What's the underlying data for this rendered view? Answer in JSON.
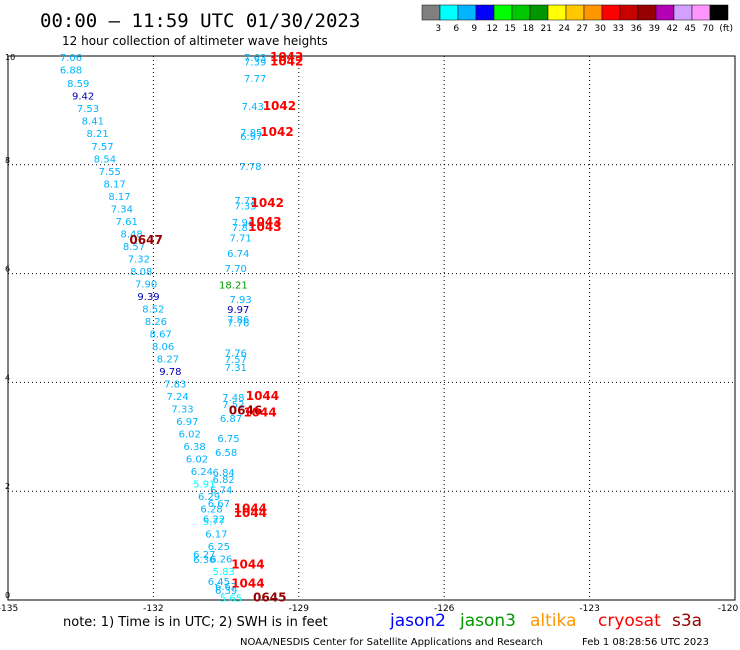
{
  "header": {
    "title": "00:00 — 11:59 UTC 01/30/2023",
    "subtitle": "12 hour collection of altimeter wave heights"
  },
  "colorbar": {
    "colors": [
      "#808080",
      "#00ffff",
      "#00b4ff",
      "#0000ff",
      "#00ff00",
      "#00c800",
      "#009600",
      "#ffff00",
      "#ffc800",
      "#ff9600",
      "#ff0000",
      "#c80000",
      "#960000",
      "#b400b4",
      "#d2a0ff",
      "#ff96ff",
      "#000000"
    ],
    "labels": [
      "3",
      "6",
      "9",
      "12",
      "15",
      "18",
      "21",
      "24",
      "27",
      "30",
      "33",
      "36",
      "39",
      "42",
      "45",
      "70",
      "(ft)"
    ]
  },
  "footer": {
    "note": "note: 1) Time is in UTC; 2) SWH is in feet",
    "credit": "NOAA/NESDIS Center for Satellite Applications and Research",
    "timestamp": "Feb  1 08:28:56 UTC 2023"
  },
  "legend": [
    {
      "name": "jason2",
      "color": "#0000ff"
    },
    {
      "name": "jason3",
      "color": "#009600"
    },
    {
      "name": "altika",
      "color": "#ff9600"
    },
    {
      "name": "cryosat",
      "color": "#ff0000"
    },
    {
      "name": "s3a",
      "color": "#960000"
    }
  ],
  "chart_data": {
    "type": "scatter",
    "xlim": [
      -135,
      -120
    ],
    "ylim": [
      0,
      10
    ],
    "x_ticks": [
      "-135",
      "-132",
      "-129",
      "-126",
      "-123",
      "-120"
    ],
    "y_ticks": [
      "0",
      "2",
      "4",
      "6",
      "8",
      "10"
    ],
    "grid": true,
    "points": [
      {
        "x": -133.7,
        "y": 9.98,
        "label": "7.06",
        "color": "#00b4ff"
      },
      {
        "x": -133.7,
        "y": 9.75,
        "label": "6.88",
        "color": "#00b4ff"
      },
      {
        "x": -133.55,
        "y": 9.5,
        "label": "8.59",
        "color": "#00b4ff"
      },
      {
        "x": -133.45,
        "y": 9.27,
        "label": "9.42",
        "color": "#0000b4"
      },
      {
        "x": -133.35,
        "y": 9.04,
        "label": "7.53",
        "color": "#00b4ff"
      },
      {
        "x": -133.25,
        "y": 8.81,
        "label": "8.41",
        "color": "#00b4ff"
      },
      {
        "x": -133.15,
        "y": 8.58,
        "label": "8.21",
        "color": "#00b4ff"
      },
      {
        "x": -133.05,
        "y": 8.35,
        "label": "7.57",
        "color": "#00b4ff"
      },
      {
        "x": -133.0,
        "y": 8.12,
        "label": "8.54",
        "color": "#00b4ff"
      },
      {
        "x": -132.9,
        "y": 7.89,
        "label": "7.55",
        "color": "#00b4ff"
      },
      {
        "x": -132.8,
        "y": 7.66,
        "label": "8.17",
        "color": "#00b4ff"
      },
      {
        "x": -132.7,
        "y": 7.43,
        "label": "8.17",
        "color": "#00b4ff"
      },
      {
        "x": -132.65,
        "y": 7.2,
        "label": "7.34",
        "color": "#00b4ff"
      },
      {
        "x": -132.55,
        "y": 6.97,
        "label": "7.61",
        "color": "#00b4ff"
      },
      {
        "x": -132.45,
        "y": 6.74,
        "label": "8.48",
        "color": "#00b4ff"
      },
      {
        "x": -132.4,
        "y": 6.51,
        "label": "8.57",
        "color": "#00b4ff"
      },
      {
        "x": -132.3,
        "y": 6.28,
        "label": "7.32",
        "color": "#00b4ff"
      },
      {
        "x": -132.25,
        "y": 6.05,
        "label": "8.08",
        "color": "#00b4ff"
      },
      {
        "x": -132.15,
        "y": 5.82,
        "label": "7.90",
        "color": "#00b4ff"
      },
      {
        "x": -132.1,
        "y": 5.59,
        "label": "9.39",
        "color": "#0000b4"
      },
      {
        "x": -132.0,
        "y": 5.36,
        "label": "8.52",
        "color": "#00b4ff"
      },
      {
        "x": -131.95,
        "y": 5.13,
        "label": "8.26",
        "color": "#00b4ff"
      },
      {
        "x": -131.85,
        "y": 4.9,
        "label": "8.67",
        "color": "#00b4ff"
      },
      {
        "x": -131.8,
        "y": 4.67,
        "label": "8.06",
        "color": "#00b4ff"
      },
      {
        "x": -131.7,
        "y": 4.44,
        "label": "8.27",
        "color": "#00b4ff"
      },
      {
        "x": -131.65,
        "y": 4.21,
        "label": "9.78",
        "color": "#0000b4"
      },
      {
        "x": -131.55,
        "y": 3.98,
        "label": "7.83",
        "color": "#00b4ff"
      },
      {
        "x": -131.5,
        "y": 3.75,
        "label": "7.24",
        "color": "#00b4ff"
      },
      {
        "x": -131.4,
        "y": 3.52,
        "label": "7.33",
        "color": "#00b4ff"
      },
      {
        "x": -131.3,
        "y": 3.29,
        "label": "6.97",
        "color": "#00b4ff"
      },
      {
        "x": -131.25,
        "y": 3.06,
        "label": "6.02",
        "color": "#00b4ff"
      },
      {
        "x": -131.15,
        "y": 2.83,
        "label": "6.38",
        "color": "#00b4ff"
      },
      {
        "x": -131.1,
        "y": 2.6,
        "label": "6.02",
        "color": "#00b4ff"
      },
      {
        "x": -131.0,
        "y": 2.37,
        "label": "6.24",
        "color": "#00b4ff"
      },
      {
        "x": -130.95,
        "y": 2.14,
        "label": "5.91",
        "color": "#00ffff"
      },
      {
        "x": -130.85,
        "y": 1.91,
        "label": "6.29",
        "color": "#00b4ff"
      },
      {
        "x": -130.8,
        "y": 1.68,
        "label": "6.28",
        "color": "#00b4ff"
      },
      {
        "x": -130.75,
        "y": 1.45,
        "label": "5.77",
        "color": "#00ffff"
      },
      {
        "x": -130.7,
        "y": 1.22,
        "label": "6.17",
        "color": "#00b4ff"
      },
      {
        "x": -130.65,
        "y": 0.99,
        "label": "6.25",
        "color": "#00b4ff"
      },
      {
        "x": -130.6,
        "y": 0.76,
        "label": "6.26",
        "color": "#00b4ff"
      },
      {
        "x": -130.55,
        "y": 0.53,
        "label": "5.83",
        "color": "#00ffff"
      },
      {
        "x": -130.4,
        "y": 0.05,
        "label": "5.65",
        "color": "#00ffff"
      },
      {
        "x": -129.9,
        "y": 9.98,
        "label": "7.63",
        "color": "#00b4ff"
      },
      {
        "x": -129.9,
        "y": 9.9,
        "label": "7.39",
        "color": "#00b4ff"
      },
      {
        "x": -129.9,
        "y": 9.6,
        "label": "7.77",
        "color": "#00b4ff"
      },
      {
        "x": -129.95,
        "y": 9.08,
        "label": "7.43",
        "color": "#00b4ff"
      },
      {
        "x": -129.98,
        "y": 8.6,
        "label": "7.85",
        "color": "#00b4ff"
      },
      {
        "x": -129.98,
        "y": 8.53,
        "label": "6.97",
        "color": "#00b4ff"
      },
      {
        "x": -130.0,
        "y": 7.98,
        "label": "7.78",
        "color": "#00b4ff"
      },
      {
        "x": -130.1,
        "y": 7.35,
        "label": "7.72",
        "color": "#00b4ff"
      },
      {
        "x": -130.1,
        "y": 7.25,
        "label": "7.35",
        "color": "#00b4ff"
      },
      {
        "x": -130.15,
        "y": 6.95,
        "label": "7.94",
        "color": "#00b4ff"
      },
      {
        "x": -130.15,
        "y": 6.86,
        "label": "7.83",
        "color": "#00b4ff"
      },
      {
        "x": -130.2,
        "y": 6.66,
        "label": "7.71",
        "color": "#00b4ff"
      },
      {
        "x": -130.25,
        "y": 6.38,
        "label": "6.74",
        "color": "#00b4ff"
      },
      {
        "x": -130.3,
        "y": 6.1,
        "label": "7.70",
        "color": "#00b4ff"
      },
      {
        "x": -130.35,
        "y": 5.8,
        "label": "18.21",
        "color": "#009600"
      },
      {
        "x": -130.2,
        "y": 5.53,
        "label": "7.93",
        "color": "#00b4ff"
      },
      {
        "x": -130.25,
        "y": 5.35,
        "label": "9.97",
        "color": "#0000b4"
      },
      {
        "x": -130.25,
        "y": 5.17,
        "label": "7.86",
        "color": "#00b4ff"
      },
      {
        "x": -130.25,
        "y": 5.1,
        "label": "7.76",
        "color": "#00b4ff"
      },
      {
        "x": -130.3,
        "y": 4.55,
        "label": "7.76",
        "color": "#00b4ff"
      },
      {
        "x": -130.3,
        "y": 4.43,
        "label": "7.57",
        "color": "#00b4ff"
      },
      {
        "x": -130.3,
        "y": 4.28,
        "label": "7.31",
        "color": "#00b4ff"
      },
      {
        "x": -130.35,
        "y": 3.73,
        "label": "7.48",
        "color": "#00b4ff"
      },
      {
        "x": -130.35,
        "y": 3.6,
        "label": "7.52",
        "color": "#00b4ff"
      },
      {
        "x": -130.4,
        "y": 3.35,
        "label": "6.87",
        "color": "#00b4ff"
      },
      {
        "x": -130.45,
        "y": 2.98,
        "label": "6.75",
        "color": "#00b4ff"
      },
      {
        "x": -130.5,
        "y": 2.72,
        "label": "6.58",
        "color": "#00b4ff"
      },
      {
        "x": -130.55,
        "y": 2.35,
        "label": "6.84",
        "color": "#00b4ff"
      },
      {
        "x": -130.55,
        "y": 2.22,
        "label": "6.82",
        "color": "#00b4ff"
      },
      {
        "x": -130.6,
        "y": 2.03,
        "label": "6.74",
        "color": "#00b4ff"
      },
      {
        "x": -130.65,
        "y": 1.78,
        "label": "6.67",
        "color": "#00b4ff"
      },
      {
        "x": -130.75,
        "y": 1.5,
        "label": "6.22",
        "color": "#00b4ff"
      },
      {
        "x": -130.95,
        "y": 0.85,
        "label": "6.27",
        "color": "#00b4ff"
      },
      {
        "x": -130.95,
        "y": 0.75,
        "label": "6.36",
        "color": "#00b4ff"
      },
      {
        "x": -130.65,
        "y": 0.35,
        "label": "6.45",
        "color": "#00b4ff"
      },
      {
        "x": -130.5,
        "y": 0.26,
        "label": "6.67",
        "color": "#00b4ff"
      },
      {
        "x": -130.5,
        "y": 0.18,
        "label": "6.39",
        "color": "#00b4ff"
      },
      {
        "x": -130.1,
        "y": 3.48,
        "label": "0646",
        "color": "#960000"
      },
      {
        "x": -132.15,
        "y": 6.62,
        "label": "0647",
        "color": "#960000"
      },
      {
        "x": -129.6,
        "y": 0.05,
        "label": "0645",
        "color": "#960000"
      },
      {
        "x": -129.25,
        "y": 9.98,
        "label": "1043",
        "color": "#ff0000"
      },
      {
        "x": -129.25,
        "y": 9.9,
        "label": "1042",
        "color": "#ff0000"
      },
      {
        "x": -129.4,
        "y": 9.08,
        "label": "1042",
        "color": "#ff0000"
      },
      {
        "x": -129.45,
        "y": 8.6,
        "label": "1042",
        "color": "#ff0000"
      },
      {
        "x": -129.65,
        "y": 7.3,
        "label": "1042",
        "color": "#ff0000"
      },
      {
        "x": -129.7,
        "y": 6.95,
        "label": "1043",
        "color": "#ff0000"
      },
      {
        "x": -129.7,
        "y": 6.86,
        "label": "1043",
        "color": "#ff0000"
      },
      {
        "x": -129.75,
        "y": 3.75,
        "label": "1044",
        "color": "#ff0000"
      },
      {
        "x": -129.8,
        "y": 3.45,
        "label": "1044",
        "color": "#ff0000"
      },
      {
        "x": -130.0,
        "y": 1.68,
        "label": "1044",
        "color": "#ff0000"
      },
      {
        "x": -130.0,
        "y": 1.6,
        "label": "1044",
        "color": "#ff0000"
      },
      {
        "x": -130.05,
        "y": 0.65,
        "label": "1044",
        "color": "#ff0000"
      },
      {
        "x": -130.05,
        "y": 0.3,
        "label": "1044",
        "color": "#ff0000"
      }
    ]
  }
}
